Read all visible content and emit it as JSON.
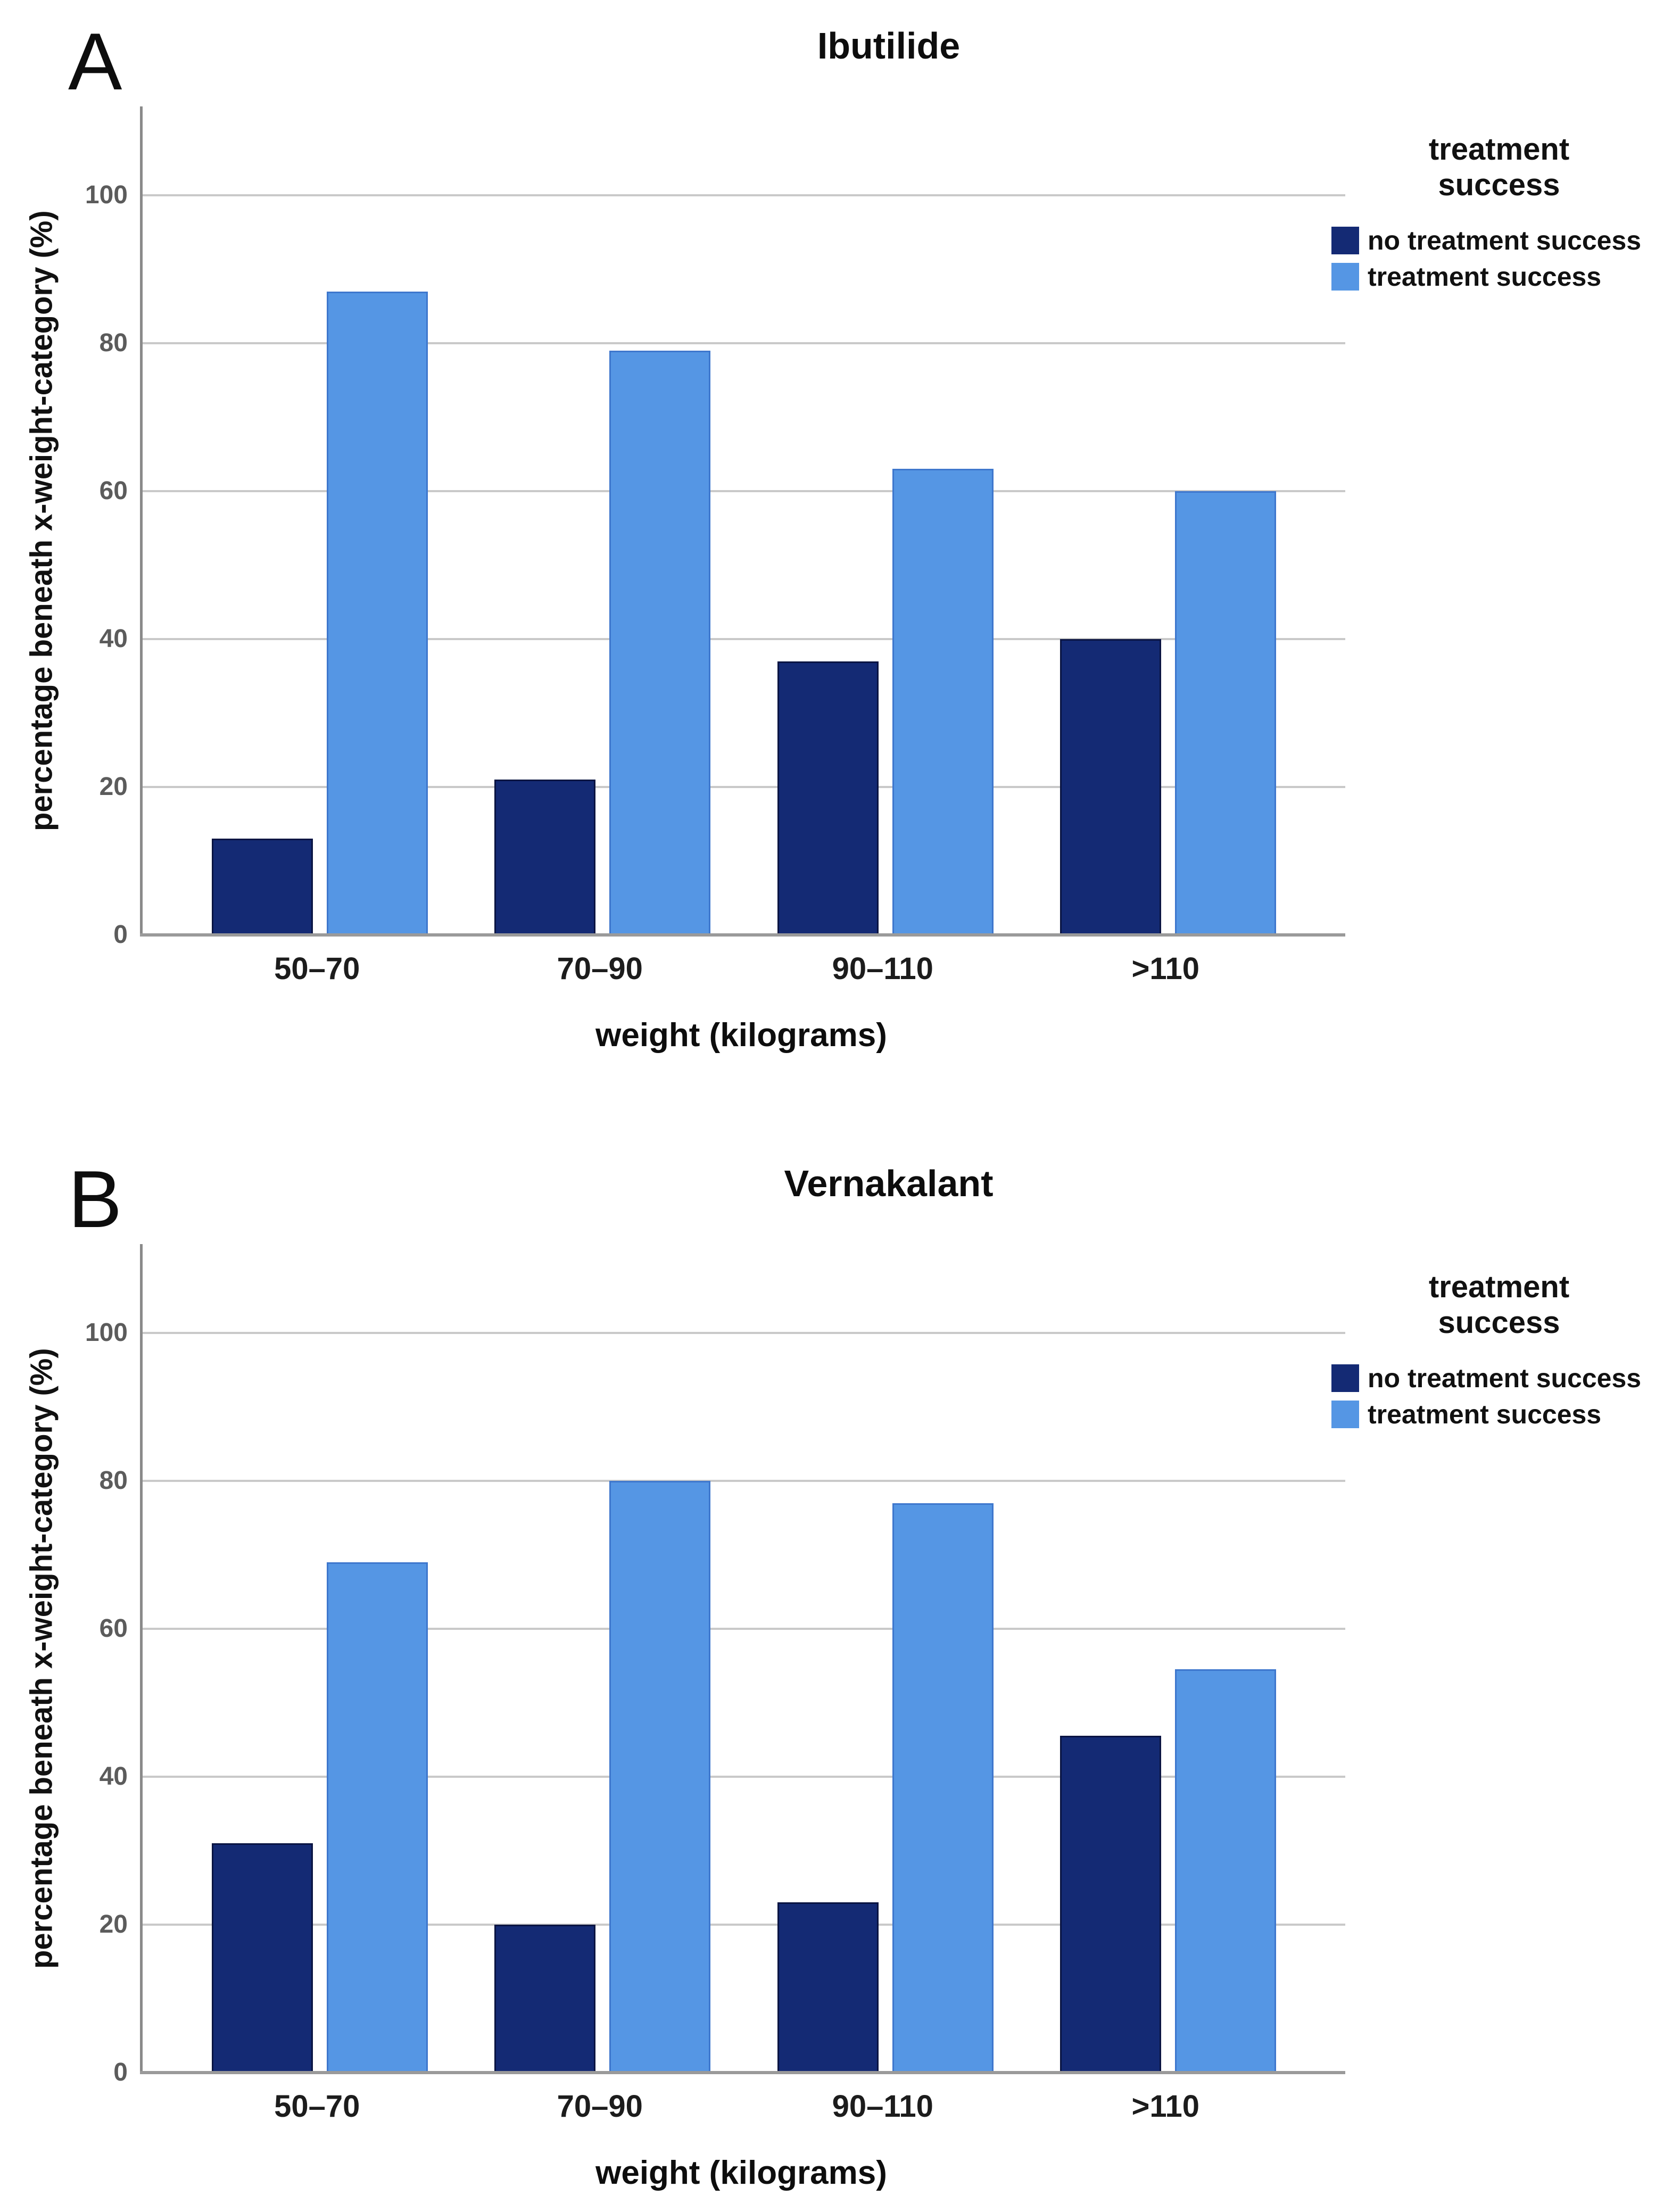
{
  "figure": {
    "background": "#ffffff",
    "panel_count": 2
  },
  "colors": {
    "no_treatment_success": "#142A74",
    "treatment_success": "#5596E4",
    "gridline": "#c9c9c9",
    "axis_line": "#8a8a8a",
    "baseline": "#9a9a9a",
    "tick_label": "#5b5b5b",
    "text": "#111111"
  },
  "chart_data": [
    {
      "type": "bar",
      "panel_letter": "A",
      "title": "Ibutilide",
      "categories": [
        "50–70",
        "70–90",
        "90–110",
        ">110"
      ],
      "series": [
        {
          "name": "no treatment success",
          "color": "#142A74",
          "values": [
            13,
            21,
            37,
            40
          ]
        },
        {
          "name": "treatment success",
          "color": "#5596E4",
          "values": [
            87,
            79,
            63,
            60
          ]
        }
      ],
      "xlabel": "weight (kilograms)",
      "ylabel": "percentage beneath x-weight-category (%)",
      "yticks": [
        0,
        20,
        40,
        60,
        80,
        100
      ],
      "ylim": [
        0,
        112
      ],
      "grid": true,
      "legend_title": "treatment success",
      "legend_position": "right"
    },
    {
      "type": "bar",
      "panel_letter": "B",
      "title": "Vernakalant",
      "categories": [
        "50–70",
        "70–90",
        "90–110",
        ">110"
      ],
      "series": [
        {
          "name": "no treatment success",
          "color": "#142A74",
          "values": [
            31,
            20,
            23,
            45.5
          ]
        },
        {
          "name": "treatment success",
          "color": "#5596E4",
          "values": [
            69,
            80,
            77,
            54.5
          ]
        }
      ],
      "xlabel": "weight (kilograms)",
      "ylabel": "percentage beneath x-weight-category (%)",
      "yticks": [
        0,
        20,
        40,
        60,
        80,
        100
      ],
      "ylim": [
        0,
        112
      ],
      "grid": true,
      "legend_title": "treatment success",
      "legend_position": "right"
    }
  ]
}
